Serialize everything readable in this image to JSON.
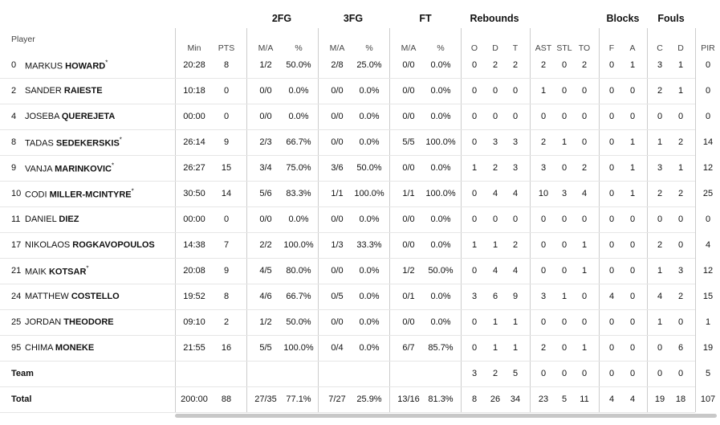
{
  "player_label": "Player",
  "groups": [
    "2FG",
    "3FG",
    "FT",
    "Rebounds",
    "Blocks",
    "Fouls"
  ],
  "columns": [
    "Min",
    "PTS",
    "M/A",
    "%",
    "M/A",
    "%",
    "M/A",
    "%",
    "O",
    "D",
    "T",
    "AST",
    "STL",
    "TO",
    "F",
    "A",
    "C",
    "D",
    "PIR"
  ],
  "rows": [
    {
      "no": "0",
      "first": "MARKUS",
      "last": "HOWARD",
      "star": "*",
      "stats": [
        "20:28",
        "8",
        "1/2",
        "50.0%",
        "2/8",
        "25.0%",
        "0/0",
        "0.0%",
        "0",
        "2",
        "2",
        "2",
        "0",
        "2",
        "0",
        "1",
        "3",
        "1",
        "0"
      ]
    },
    {
      "no": "2",
      "first": "SANDER",
      "last": "RAIESTE",
      "stats": [
        "10:18",
        "0",
        "0/0",
        "0.0%",
        "0/0",
        "0.0%",
        "0/0",
        "0.0%",
        "0",
        "0",
        "0",
        "1",
        "0",
        "0",
        "0",
        "0",
        "2",
        "1",
        "0"
      ]
    },
    {
      "no": "4",
      "first": "JOSEBA",
      "last": "QUEREJETA",
      "stats": [
        "00:00",
        "0",
        "0/0",
        "0.0%",
        "0/0",
        "0.0%",
        "0/0",
        "0.0%",
        "0",
        "0",
        "0",
        "0",
        "0",
        "0",
        "0",
        "0",
        "0",
        "0",
        "0"
      ]
    },
    {
      "no": "8",
      "first": "TADAS",
      "last": "SEDEKERSKIS",
      "star": "*",
      "stats": [
        "26:14",
        "9",
        "2/3",
        "66.7%",
        "0/0",
        "0.0%",
        "5/5",
        "100.0%",
        "0",
        "3",
        "3",
        "2",
        "1",
        "0",
        "0",
        "1",
        "1",
        "2",
        "14"
      ]
    },
    {
      "no": "9",
      "first": "VANJA",
      "last": "MARINKOVIC",
      "star": "*",
      "stats": [
        "26:27",
        "15",
        "3/4",
        "75.0%",
        "3/6",
        "50.0%",
        "0/0",
        "0.0%",
        "1",
        "2",
        "3",
        "3",
        "0",
        "2",
        "0",
        "1",
        "3",
        "1",
        "12"
      ]
    },
    {
      "no": "10",
      "first": "CODI",
      "last": "MILLER-MCINTYRE",
      "star": "*",
      "stats": [
        "30:50",
        "14",
        "5/6",
        "83.3%",
        "1/1",
        "100.0%",
        "1/1",
        "100.0%",
        "0",
        "4",
        "4",
        "10",
        "3",
        "4",
        "0",
        "1",
        "2",
        "2",
        "25"
      ]
    },
    {
      "no": "11",
      "first": "DANIEL",
      "last": "DIEZ",
      "stats": [
        "00:00",
        "0",
        "0/0",
        "0.0%",
        "0/0",
        "0.0%",
        "0/0",
        "0.0%",
        "0",
        "0",
        "0",
        "0",
        "0",
        "0",
        "0",
        "0",
        "0",
        "0",
        "0"
      ]
    },
    {
      "no": "17",
      "first": "NIKOLAOS",
      "last": "ROGKAVOPOULOS",
      "stats": [
        "14:38",
        "7",
        "2/2",
        "100.0%",
        "1/3",
        "33.3%",
        "0/0",
        "0.0%",
        "1",
        "1",
        "2",
        "0",
        "0",
        "1",
        "0",
        "0",
        "2",
        "0",
        "4"
      ]
    },
    {
      "no": "21",
      "first": "MAIK",
      "last": "KOTSAR",
      "star": "*",
      "stats": [
        "20:08",
        "9",
        "4/5",
        "80.0%",
        "0/0",
        "0.0%",
        "1/2",
        "50.0%",
        "0",
        "4",
        "4",
        "0",
        "0",
        "1",
        "0",
        "0",
        "1",
        "3",
        "12"
      ]
    },
    {
      "no": "24",
      "first": "MATTHEW",
      "last": "COSTELLO",
      "stats": [
        "19:52",
        "8",
        "4/6",
        "66.7%",
        "0/5",
        "0.0%",
        "0/1",
        "0.0%",
        "3",
        "6",
        "9",
        "3",
        "1",
        "0",
        "4",
        "0",
        "4",
        "2",
        "15"
      ]
    },
    {
      "no": "25",
      "first": "JORDAN",
      "last": "THEODORE",
      "stats": [
        "09:10",
        "2",
        "1/2",
        "50.0%",
        "0/0",
        "0.0%",
        "0/0",
        "0.0%",
        "0",
        "1",
        "1",
        "0",
        "0",
        "0",
        "0",
        "0",
        "1",
        "0",
        "1"
      ]
    },
    {
      "no": "95",
      "first": "CHIMA",
      "last": "MONEKE",
      "stats": [
        "21:55",
        "16",
        "5/5",
        "100.0%",
        "0/4",
        "0.0%",
        "6/7",
        "85.7%",
        "0",
        "1",
        "1",
        "2",
        "0",
        "1",
        "0",
        "0",
        "0",
        "6",
        "19"
      ]
    }
  ],
  "team": {
    "label": "Team",
    "stats": [
      null,
      null,
      null,
      null,
      null,
      null,
      null,
      null,
      "3",
      "2",
      "5",
      "0",
      "0",
      "0",
      "0",
      "0",
      "0",
      "0",
      "5"
    ]
  },
  "total": {
    "label": "Total",
    "stats": [
      "200:00",
      "88",
      "27/35",
      "77.1%",
      "7/27",
      "25.9%",
      "13/16",
      "81.3%",
      "8",
      "26",
      "34",
      "23",
      "5",
      "11",
      "4",
      "4",
      "19",
      "18",
      "107"
    ]
  }
}
